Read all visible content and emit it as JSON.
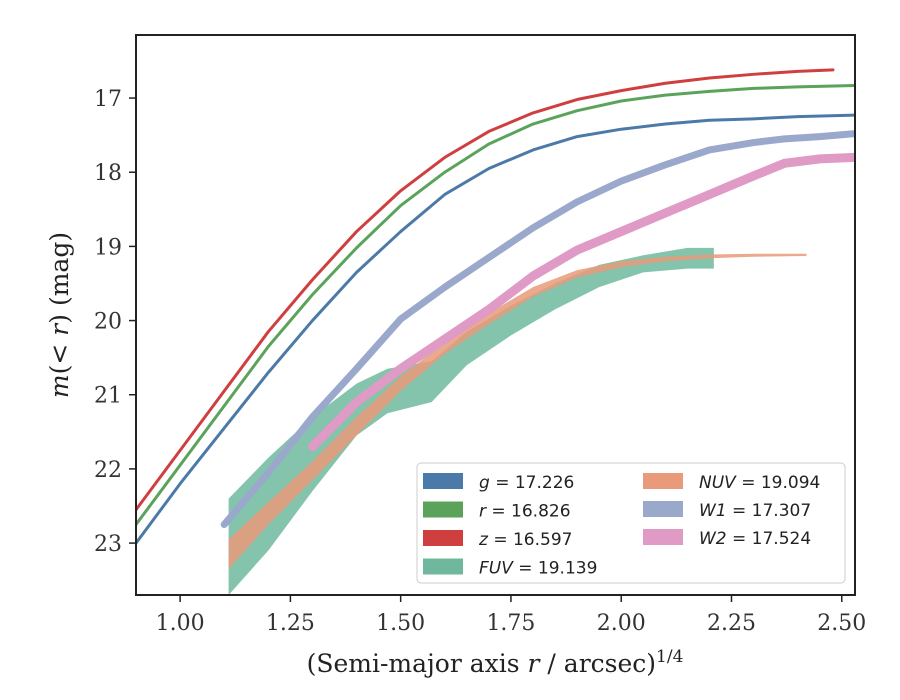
{
  "chart_data": {
    "type": "line",
    "xlabel": "(Semi-major axis r / arcsec)",
    "xlabel_italic_part": "r",
    "xlabel_exponent": "1/4",
    "ylabel": "m(< r) (mag)",
    "xlim": [
      0.9,
      2.53
    ],
    "ylim": [
      23.7,
      16.15
    ],
    "y_inverted": true,
    "x_ticks": [
      1.0,
      1.25,
      1.5,
      1.75,
      2.0,
      2.25,
      2.5
    ],
    "x_tick_labels": [
      "1.00",
      "1.25",
      "1.50",
      "1.75",
      "2.00",
      "2.25",
      "2.50"
    ],
    "y_ticks": [
      17,
      18,
      19,
      20,
      21,
      22,
      23
    ],
    "y_tick_labels": [
      "17",
      "18",
      "19",
      "20",
      "21",
      "22",
      "23"
    ],
    "grid": false,
    "legend_position": "lower-right",
    "series": [
      {
        "band": "g",
        "legend": "g = 17.226",
        "color": "#4c7aa8",
        "width": 3,
        "x": [
          0.9,
          1.0,
          1.1,
          1.2,
          1.3,
          1.4,
          1.5,
          1.6,
          1.7,
          1.8,
          1.9,
          2.0,
          2.1,
          2.2,
          2.3,
          2.4,
          2.53
        ],
        "y": [
          23.0,
          22.2,
          21.45,
          20.7,
          20.0,
          19.35,
          18.8,
          18.3,
          17.95,
          17.7,
          17.52,
          17.42,
          17.35,
          17.3,
          17.28,
          17.25,
          17.23
        ]
      },
      {
        "band": "r",
        "legend": "r = 16.826",
        "color": "#5ba35b",
        "width": 3,
        "x": [
          0.9,
          1.0,
          1.1,
          1.2,
          1.3,
          1.4,
          1.5,
          1.6,
          1.7,
          1.8,
          1.9,
          2.0,
          2.1,
          2.2,
          2.3,
          2.4,
          2.53
        ],
        "y": [
          22.75,
          21.95,
          21.15,
          20.35,
          19.65,
          19.02,
          18.45,
          18.0,
          17.62,
          17.35,
          17.17,
          17.04,
          16.96,
          16.91,
          16.87,
          16.85,
          16.83
        ]
      },
      {
        "band": "z",
        "legend": "z = 16.597",
        "color": "#d03f3f",
        "width": 3,
        "x": [
          0.9,
          1.0,
          1.1,
          1.2,
          1.3,
          1.4,
          1.5,
          1.6,
          1.7,
          1.8,
          1.9,
          2.0,
          2.1,
          2.2,
          2.3,
          2.4,
          2.48
        ],
        "y": [
          22.55,
          21.75,
          20.95,
          20.15,
          19.45,
          18.8,
          18.25,
          17.8,
          17.45,
          17.2,
          17.02,
          16.9,
          16.8,
          16.73,
          16.68,
          16.64,
          16.62
        ]
      },
      {
        "band": "FUV",
        "legend": "FUV = 19.139",
        "color": "#6fb89e",
        "band_fill": true,
        "x": [
          1.11,
          1.2,
          1.3,
          1.4,
          1.47,
          1.57,
          1.65,
          1.75,
          1.85,
          1.95,
          2.05,
          2.15,
          2.21
        ],
        "y_upper": [
          22.4,
          21.85,
          21.3,
          20.85,
          20.65,
          20.55,
          20.15,
          19.8,
          19.5,
          19.25,
          19.12,
          19.02,
          19.02
        ],
        "y_lower": [
          23.7,
          23.1,
          22.3,
          21.55,
          21.25,
          21.1,
          20.6,
          20.2,
          19.85,
          19.55,
          19.35,
          19.3,
          19.3
        ]
      },
      {
        "band": "NUV",
        "legend": "NUV = 19.094",
        "color": "#e89a7a",
        "band_fill": true,
        "x": [
          1.11,
          1.2,
          1.3,
          1.4,
          1.5,
          1.6,
          1.7,
          1.8,
          1.9,
          2.0,
          2.1,
          2.2,
          2.3,
          2.42
        ],
        "y_upper": [
          22.95,
          22.45,
          21.9,
          21.3,
          20.75,
          20.3,
          19.9,
          19.55,
          19.32,
          19.2,
          19.14,
          19.11,
          19.1,
          19.1
        ],
        "y_lower": [
          23.35,
          22.75,
          22.15,
          21.55,
          20.95,
          20.45,
          20.05,
          19.68,
          19.42,
          19.28,
          19.2,
          19.16,
          19.14,
          19.13
        ]
      },
      {
        "band": "W1",
        "legend": "W1 = 17.307",
        "color": "#9aa8cc",
        "width": 7,
        "x": [
          1.1,
          1.2,
          1.3,
          1.4,
          1.5,
          1.6,
          1.7,
          1.8,
          1.9,
          2.0,
          2.1,
          2.2,
          2.3,
          2.37,
          2.45,
          2.53
        ],
        "y": [
          22.75,
          22.05,
          21.3,
          20.65,
          19.98,
          19.55,
          19.15,
          18.75,
          18.4,
          18.12,
          17.9,
          17.7,
          17.6,
          17.55,
          17.52,
          17.48
        ]
      },
      {
        "band": "W2",
        "legend": "W2 = 17.524",
        "color": "#e09ac6",
        "width": 9,
        "x": [
          1.3,
          1.4,
          1.5,
          1.6,
          1.7,
          1.8,
          1.9,
          2.0,
          2.1,
          2.2,
          2.3,
          2.37,
          2.45,
          2.53
        ],
        "y": [
          21.7,
          21.1,
          20.65,
          20.25,
          19.85,
          19.4,
          19.05,
          18.8,
          18.55,
          18.3,
          18.05,
          17.88,
          17.82,
          17.8
        ]
      }
    ]
  },
  "legend": {
    "left": [
      {
        "italic": "g",
        "rest": " = 17.226",
        "color": "#4c7aa8"
      },
      {
        "italic": "r",
        "rest": " = 16.826",
        "color": "#5ba35b"
      },
      {
        "italic": "z",
        "rest": " = 16.597",
        "color": "#d03f3f"
      },
      {
        "italic": "FUV",
        "rest": " = 19.139",
        "color": "#6fb89e"
      }
    ],
    "right": [
      {
        "italic": "NUV",
        "rest": " = 19.094",
        "color": "#e89a7a"
      },
      {
        "italic": "W1",
        "rest": " = 17.307",
        "color": "#9aa8cc"
      },
      {
        "italic": "W2",
        "rest": " = 17.524",
        "color": "#e09ac6"
      }
    ]
  },
  "labels": {
    "xlabel_prefix": "(Semi-major axis ",
    "xlabel_r": "r",
    "xlabel_suffix": " / arcsec)",
    "xlabel_sup": "1/4",
    "ylabel_m": "m",
    "ylabel_paren_open": "(< ",
    "ylabel_r": "r",
    "ylabel_rest": ") (mag)"
  }
}
